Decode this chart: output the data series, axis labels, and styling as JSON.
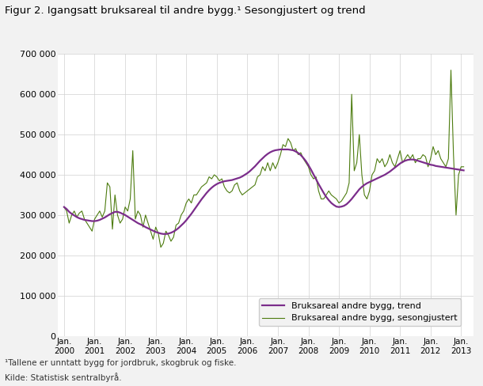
{
  "title": "Figur 2. Igangsatt bruksareal til andre bygg.¹ Sesongjustert og trend",
  "footnote1": "¹Tallene er unntatt bygg for jordbruk, skogbruk og fiske.",
  "footnote2": "Kilde: Statistisk sentralbyrå.",
  "legend_trend": "Bruksareal andre bygg, trend",
  "legend_seas": "Bruksareal andre bygg, sesongjustert",
  "color_trend": "#7b2d8b",
  "color_seas": "#4d7c0f",
  "ylim": [
    0,
    700000
  ],
  "yticks": [
    0,
    100000,
    200000,
    300000,
    400000,
    500000,
    600000,
    700000
  ],
  "ytick_labels": [
    "0",
    "100 000",
    "200 000",
    "300 000",
    "400 000",
    "500 000",
    "600 000",
    "700 000"
  ],
  "background_color": "#f2f2f2",
  "plot_bg": "#ffffff",
  "start_year": 2000,
  "seas_data": [
    320000,
    310000,
    280000,
    300000,
    310000,
    295000,
    305000,
    310000,
    290000,
    280000,
    270000,
    260000,
    290000,
    300000,
    310000,
    295000,
    310000,
    380000,
    370000,
    265000,
    350000,
    300000,
    280000,
    290000,
    320000,
    310000,
    340000,
    460000,
    290000,
    310000,
    300000,
    270000,
    300000,
    280000,
    260000,
    240000,
    270000,
    255000,
    220000,
    230000,
    260000,
    250000,
    235000,
    245000,
    275000,
    280000,
    300000,
    310000,
    330000,
    340000,
    330000,
    350000,
    350000,
    360000,
    370000,
    375000,
    380000,
    395000,
    390000,
    400000,
    395000,
    385000,
    390000,
    370000,
    360000,
    355000,
    360000,
    375000,
    380000,
    360000,
    350000,
    355000,
    360000,
    365000,
    370000,
    375000,
    395000,
    400000,
    420000,
    410000,
    430000,
    410000,
    430000,
    415000,
    430000,
    450000,
    475000,
    470000,
    490000,
    480000,
    460000,
    465000,
    450000,
    455000,
    440000,
    430000,
    420000,
    400000,
    390000,
    395000,
    360000,
    340000,
    340000,
    350000,
    360000,
    350000,
    345000,
    340000,
    330000,
    335000,
    345000,
    355000,
    380000,
    600000,
    410000,
    430000,
    500000,
    400000,
    350000,
    340000,
    360000,
    400000,
    410000,
    440000,
    430000,
    440000,
    420000,
    430000,
    450000,
    430000,
    420000,
    440000,
    460000,
    430000,
    440000,
    450000,
    440000,
    450000,
    430000,
    440000,
    440000,
    450000,
    445000,
    420000,
    440000,
    470000,
    450000,
    460000,
    440000,
    430000,
    420000,
    440000,
    660000,
    450000,
    300000,
    400000,
    420000,
    420000
  ],
  "trend_data": [
    320000,
    315000,
    308000,
    303000,
    299000,
    295000,
    292000,
    290000,
    288000,
    287000,
    286000,
    285000,
    285000,
    286000,
    288000,
    291000,
    294000,
    298000,
    302000,
    305000,
    308000,
    308000,
    306000,
    303000,
    300000,
    296000,
    292000,
    288000,
    284000,
    280000,
    277000,
    274000,
    270000,
    267000,
    264000,
    261000,
    258000,
    256000,
    254000,
    253000,
    253000,
    254000,
    256000,
    259000,
    263000,
    268000,
    274000,
    280000,
    287000,
    295000,
    303000,
    312000,
    321000,
    330000,
    339000,
    347000,
    355000,
    362000,
    368000,
    373000,
    377000,
    380000,
    382000,
    384000,
    385000,
    386000,
    387000,
    389000,
    391000,
    393000,
    396000,
    400000,
    404000,
    409000,
    415000,
    421000,
    428000,
    435000,
    441000,
    447000,
    452000,
    456000,
    459000,
    461000,
    462000,
    463000,
    463000,
    463000,
    463000,
    462000,
    461000,
    458000,
    454000,
    449000,
    442000,
    434000,
    424000,
    413000,
    401000,
    389000,
    377000,
    366000,
    355000,
    345000,
    337000,
    330000,
    325000,
    321000,
    320000,
    321000,
    323000,
    327000,
    333000,
    340000,
    348000,
    356000,
    364000,
    370000,
    375000,
    379000,
    382000,
    385000,
    388000,
    391000,
    394000,
    397000,
    400000,
    404000,
    408000,
    413000,
    418000,
    423000,
    428000,
    432000,
    435000,
    437000,
    438000,
    438000,
    437000,
    435000,
    433000,
    431000,
    429000,
    427000,
    425000,
    424000,
    422000,
    421000,
    420000,
    419000,
    418000,
    417000,
    416000,
    415000,
    414000,
    413000,
    412000,
    411000
  ]
}
